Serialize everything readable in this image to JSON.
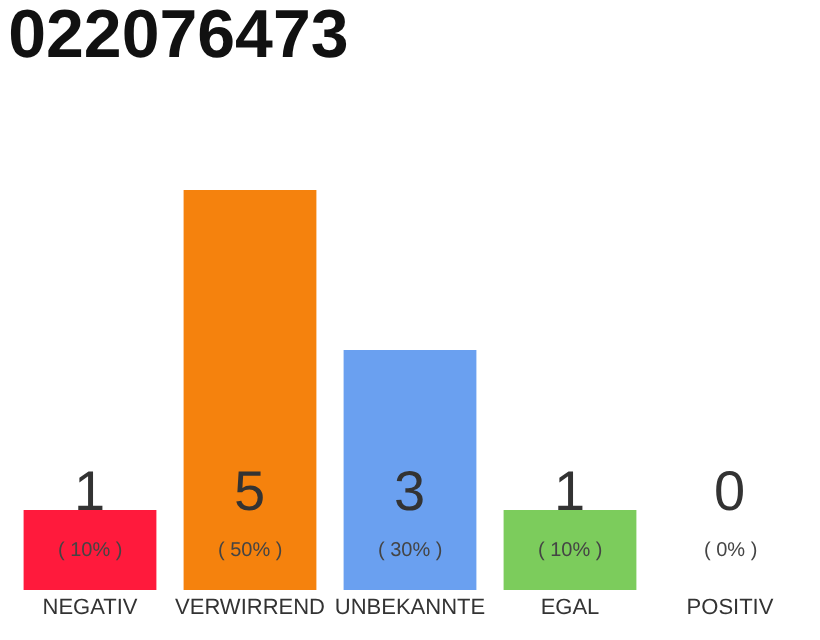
{
  "chart_data": {
    "type": "bar",
    "title": "022076473",
    "categories": [
      "NEGATIV",
      "VERWIRREND",
      "UNBEKANNTE",
      "EGAL",
      "POSITIV"
    ],
    "values": [
      1,
      5,
      3,
      1,
      0
    ],
    "colors": [
      "#ff1a3c",
      "#f5820d",
      "#6aa0f0",
      "#7ccc5c",
      "#e6e6e6"
    ],
    "value_labels": [
      "1\n( 10% )",
      "5\n( 50% )",
      "3\n( 30% )",
      "1\n( 10% )",
      "0\n( 0% )"
    ]
  }
}
